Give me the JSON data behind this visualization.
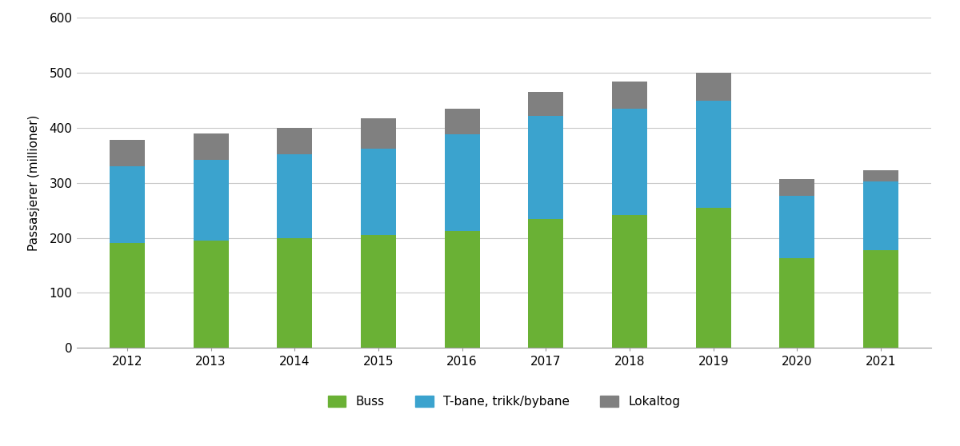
{
  "years": [
    2012,
    2013,
    2014,
    2015,
    2016,
    2017,
    2018,
    2019,
    2020,
    2021
  ],
  "buss": [
    190,
    195,
    200,
    205,
    212,
    235,
    242,
    255,
    163,
    178
  ],
  "tbane": [
    140,
    147,
    152,
    157,
    176,
    187,
    193,
    195,
    113,
    124
  ],
  "lokaltog": [
    48,
    48,
    48,
    56,
    47,
    43,
    49,
    50,
    31,
    21
  ],
  "color_buss": "#6ab135",
  "color_tbane": "#3ba3ce",
  "color_lokaltog": "#808080",
  "ylabel": "Passasjerer (millioner)",
  "ylim": [
    0,
    600
  ],
  "yticks": [
    0,
    100,
    200,
    300,
    400,
    500,
    600
  ],
  "legend_buss": "Buss",
  "legend_tbane": "T-bane, trikk/bybane",
  "legend_lokaltog": "Lokaltog",
  "bar_width": 0.42,
  "background_color": "#ffffff",
  "grid_color": "#c8c8c8"
}
